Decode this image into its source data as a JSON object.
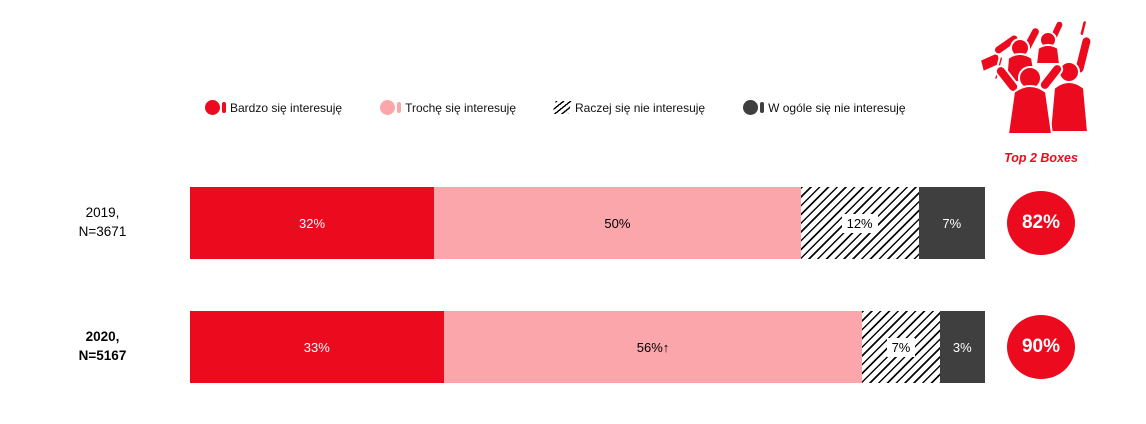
{
  "colors": {
    "red": "#EB0A1E",
    "pink": "#FBA6AB",
    "dark": "#3F3F3F",
    "hatch_fg": "#000000",
    "hatch_bg": "#FFFFFF"
  },
  "icons": {
    "top_right": "cheering-fans-icon"
  },
  "legend": {
    "items": [
      {
        "label": "Bardzo się interesuję",
        "swatch": "red"
      },
      {
        "label": "Trochę się interesuję",
        "swatch": "pink"
      },
      {
        "label": "Raczej się nie interesuję",
        "swatch": "hatch"
      },
      {
        "label": "W ogóle się nie interesuję",
        "swatch": "dark"
      }
    ]
  },
  "top2": {
    "label": "Top 2 Boxes"
  },
  "rows": [
    {
      "label_line1": "2019,",
      "label_line2": "N=3671",
      "bold": false,
      "top2": "82%",
      "segments": [
        {
          "value": 32,
          "label": "32%",
          "style": "red"
        },
        {
          "value": 50,
          "label": "50%",
          "style": "pink"
        },
        {
          "value": 12,
          "label": "12%",
          "style": "hatch"
        },
        {
          "value": 7,
          "label": "7%",
          "style": "dark"
        }
      ]
    },
    {
      "label_line1": "2020,",
      "label_line2": "N=5167",
      "bold": true,
      "top2": "90%",
      "segments": [
        {
          "value": 33,
          "label": "33%",
          "style": "red"
        },
        {
          "value": 56,
          "label": "56%↑",
          "style": "pink"
        },
        {
          "value": 7,
          "label": "7%",
          "style": "hatch"
        },
        {
          "value": 3,
          "label": "3%",
          "style": "dark"
        }
      ]
    }
  ],
  "chart_data": {
    "type": "bar",
    "orientation": "horizontal-stacked",
    "categories": [
      "2019, N=3671",
      "2020, N=5167"
    ],
    "series": [
      {
        "name": "Bardzo się interesuję",
        "values": [
          32,
          33
        ],
        "color": "#EB0A1E",
        "pattern": "solid"
      },
      {
        "name": "Trochę się interesuję",
        "values": [
          50,
          56
        ],
        "color": "#FBA6AB",
        "pattern": "solid"
      },
      {
        "name": "Raczej się nie interesuję",
        "values": [
          12,
          7
        ],
        "color": "#000000",
        "pattern": "diagonal-hatch"
      },
      {
        "name": "W ogóle się nie interesuję",
        "values": [
          7,
          3
        ],
        "color": "#3F3F3F",
        "pattern": "solid"
      }
    ],
    "data_labels": [
      [
        "32%",
        "50%",
        "12%",
        "7%"
      ],
      [
        "33%",
        "56%↑",
        "7%",
        "3%"
      ]
    ],
    "annotations": [
      "↑ on 56% marks increase vs 2019"
    ],
    "top_2_boxes": {
      "label": "Top 2 Boxes",
      "values": [
        82,
        90
      ]
    },
    "title": "",
    "xlabel": "",
    "ylabel": "",
    "xlim": [
      0,
      100
    ],
    "grid": false,
    "legend_position": "top"
  }
}
